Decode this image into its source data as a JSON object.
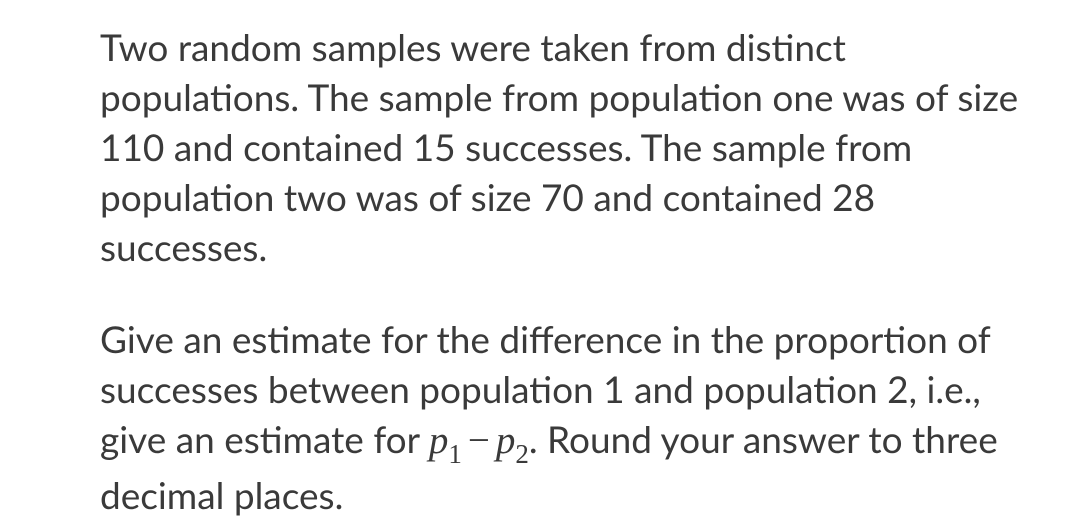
{
  "text_color": "#3a3a3a",
  "background_color": "#ffffff",
  "font_size_body": 37,
  "font_size_math": 39,
  "font_size_sub": 27,
  "line_height": 1.35,
  "paragraph1": {
    "text": "Two random samples were taken from distinct populations. The sample from population one was of size 110 and contained 15 successes. The sample from population two was of size 70 and contained 28 successes."
  },
  "paragraph2": {
    "part1": "Give an estimate for the difference in the proportion of successes between population 1 and population 2, i.e., give an estimate for ",
    "var1": "p",
    "sub1": "1",
    "minus": "−",
    "var2": "p",
    "sub2": "2",
    "part2": ". Round your answer to three decimal places."
  }
}
